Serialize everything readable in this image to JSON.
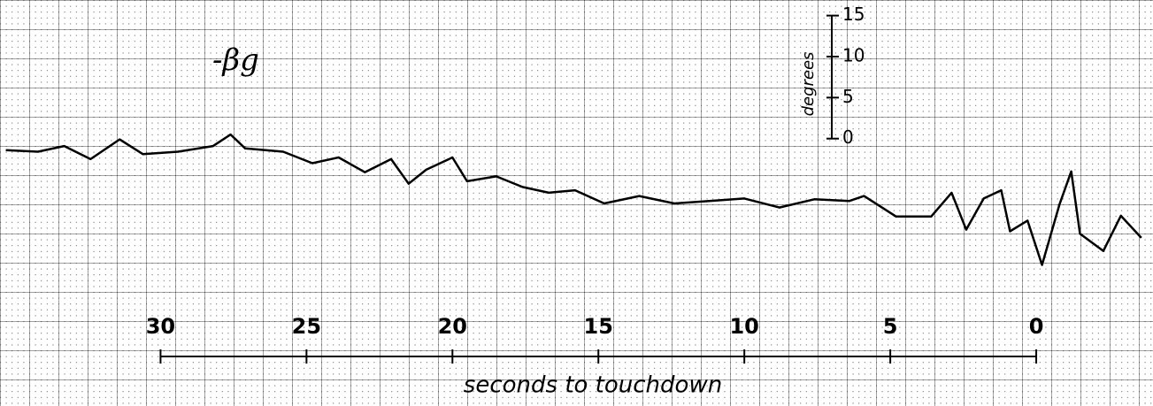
{
  "chart_data": {
    "type": "line",
    "series_label": "-βg",
    "xlabel": "seconds to touchdown",
    "ylabel": "degrees",
    "color": "#000000",
    "x": [
      35.3,
      34.2,
      33.3,
      32.4,
      31.4,
      30.6,
      29.4,
      28.2,
      27.6,
      27.1,
      25.8,
      24.8,
      23.9,
      23.0,
      22.1,
      21.5,
      20.9,
      20.0,
      19.5,
      18.5,
      17.6,
      16.7,
      15.8,
      14.8,
      13.6,
      12.4,
      11.2,
      10.0,
      8.8,
      7.6,
      6.4,
      5.9,
      4.8,
      3.6,
      2.9,
      2.4,
      1.8,
      1.2,
      0.9,
      0.3,
      -0.2,
      -0.8,
      -1.2,
      -1.5,
      -2.3,
      -2.9,
      -3.6
    ],
    "values": [
      -1.4,
      -1.6,
      -0.9,
      -2.5,
      -0.1,
      -1.9,
      -1.6,
      -0.9,
      0.5,
      -1.2,
      -1.6,
      -3.0,
      -2.3,
      -4.1,
      -2.5,
      -5.5,
      -3.8,
      -2.3,
      -5.2,
      -4.6,
      -5.9,
      -6.6,
      -6.3,
      -7.9,
      -7.0,
      -7.9,
      -7.6,
      -7.3,
      -8.4,
      -7.4,
      -7.6,
      -7.0,
      -9.5,
      -9.5,
      -6.6,
      -11.1,
      -7.3,
      -6.3,
      -11.3,
      -10.0,
      -15.4,
      -8.0,
      -4.0,
      -11.6,
      -13.7,
      -9.4,
      -12.1
    ],
    "xlim": [
      35.5,
      -4.0
    ],
    "ylim": [
      -32.6,
      16.9
    ],
    "xticks": [
      30,
      25,
      20,
      15,
      10,
      5,
      0
    ],
    "yticks": [
      15,
      10,
      5,
      0
    ]
  }
}
